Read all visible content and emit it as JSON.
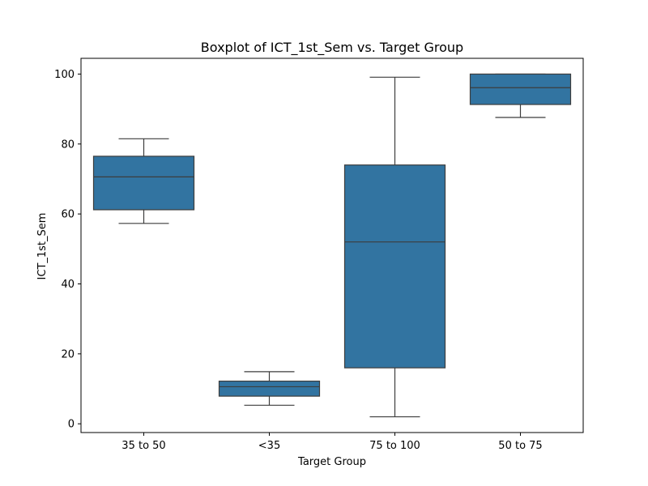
{
  "chart_data": {
    "type": "boxplot",
    "title": "Boxplot of ICT_1st_Sem vs. Target Group",
    "xlabel": "Target Group",
    "ylabel": "ICT_1st_Sem",
    "ylim": [
      -2.5,
      104.5
    ],
    "yticks": [
      0,
      20,
      40,
      60,
      80,
      100
    ],
    "grid": false,
    "box_color": "#3274a1",
    "line_color": "#3d3d3d",
    "categories": [
      "35 to 50",
      "<35",
      "75 to 100",
      "50 to 75"
    ],
    "boxes": [
      {
        "category": "35 to 50",
        "whisker_low": 57.3,
        "q1": 61.2,
        "median": 70.6,
        "q3": 76.5,
        "whisker_high": 81.5
      },
      {
        "category": "<35",
        "whisker_low": 5.3,
        "q1": 7.9,
        "median": 10.6,
        "q3": 12.2,
        "whisker_high": 14.9
      },
      {
        "category": "75 to 100",
        "whisker_low": 2.0,
        "q1": 16.0,
        "median": 52.0,
        "q3": 74.0,
        "whisker_high": 99.1
      },
      {
        "category": "50 to 75",
        "whisker_low": 87.6,
        "q1": 91.3,
        "median": 96.1,
        "q3": 100.0,
        "whisker_high": 100.0
      }
    ]
  }
}
